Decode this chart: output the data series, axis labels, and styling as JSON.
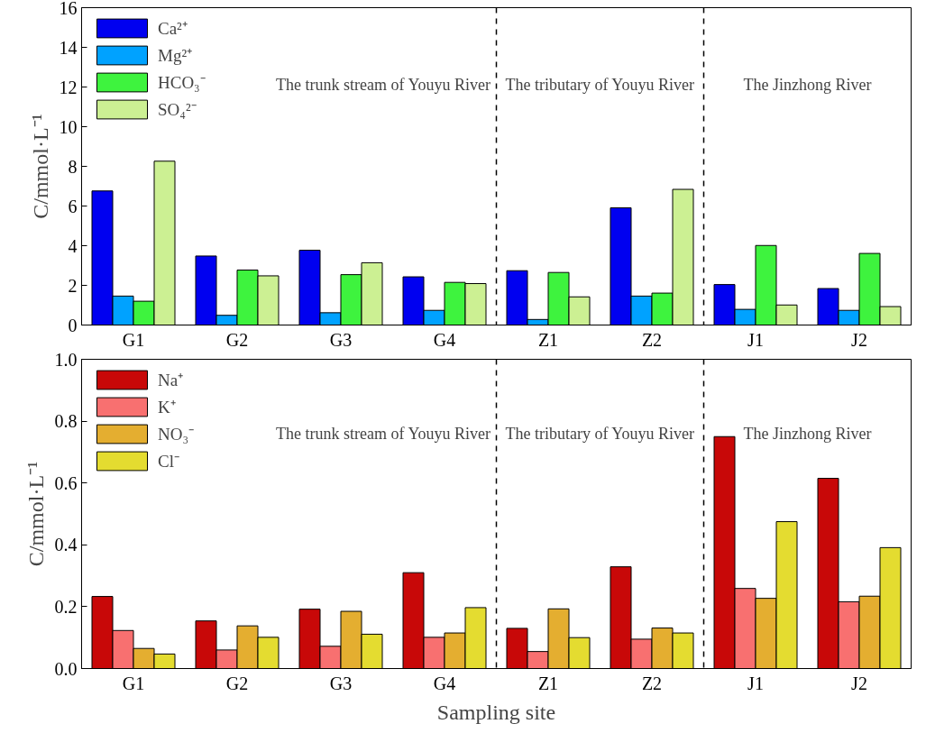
{
  "chart_data": [
    {
      "type": "bar",
      "ylabel": "C/mmol·L⁻¹",
      "categories": [
        "G1",
        "G2",
        "G3",
        "G4",
        "Z1",
        "Z2",
        "J1",
        "J2"
      ],
      "ylim": [
        0,
        16
      ],
      "yticks": [
        0,
        2,
        4,
        6,
        8,
        10,
        12,
        14,
        16
      ],
      "grid": false,
      "legend": "top left",
      "series": [
        {
          "name": "Ca²⁺",
          "color": "#0000f0",
          "values": [
            6.76,
            3.48,
            3.77,
            2.43,
            2.74,
            5.91,
            2.04,
            1.84
          ]
        },
        {
          "name": "Mg²⁺",
          "color": "#00a2ff",
          "values": [
            1.46,
            0.49,
            0.62,
            0.74,
            0.28,
            1.46,
            0.79,
            0.74
          ]
        },
        {
          "name": "HCO₃⁻",
          "color": "#3ef33e",
          "values": [
            1.2,
            2.77,
            2.54,
            2.15,
            2.65,
            1.61,
            4.01,
            3.61
          ]
        },
        {
          "name": "SO₄²⁻",
          "color": "#ccf093",
          "values": [
            8.26,
            2.48,
            3.14,
            2.09,
            1.42,
            6.84,
            1.01,
            0.93
          ]
        }
      ],
      "annotations": [
        "The trunk stream of Youyu River",
        "The tributary of Youyu River",
        "The Jinzhong River"
      ]
    },
    {
      "type": "bar",
      "ylabel": "C/mmol·L⁻¹",
      "xlabel": "Sampling site",
      "categories": [
        "G1",
        "G2",
        "G3",
        "G4",
        "Z1",
        "Z2",
        "J1",
        "J2"
      ],
      "ylim": [
        0,
        1.0
      ],
      "yticks": [
        {
          "value": 0,
          "label": "0.0"
        },
        0.2,
        0.4,
        0.6,
        0.8,
        {
          "value": 1,
          "label": "1.0"
        }
      ],
      "grid": false,
      "legend": "top left",
      "series": [
        {
          "name": "Na⁺",
          "color": "#c80808",
          "values": [
            0.233,
            0.154,
            0.192,
            0.31,
            0.13,
            0.329,
            0.75,
            0.615
          ]
        },
        {
          "name": "K⁺",
          "color": "#f87070",
          "values": [
            0.123,
            0.06,
            0.072,
            0.101,
            0.055,
            0.095,
            0.259,
            0.216
          ]
        },
        {
          "name": "NO₃⁻",
          "color": "#e4ae30",
          "values": [
            0.065,
            0.138,
            0.185,
            0.115,
            0.193,
            0.131,
            0.227,
            0.234
          ]
        },
        {
          "name": "Cl⁻",
          "color": "#e4dc30",
          "values": [
            0.047,
            0.101,
            0.111,
            0.197,
            0.1,
            0.115,
            0.475,
            0.391
          ]
        }
      ],
      "annotations": [
        "The trunk stream of Youyu River",
        "The tributary of Youyu River",
        "The Jinzhong River"
      ]
    }
  ]
}
